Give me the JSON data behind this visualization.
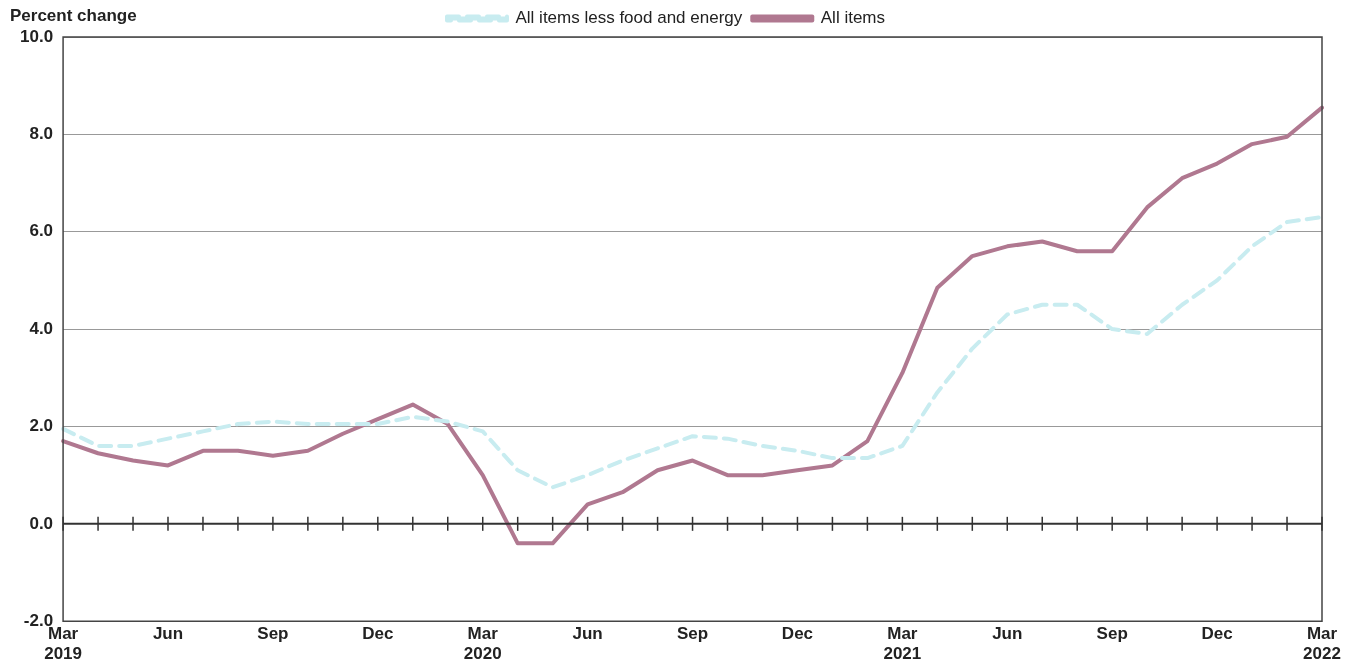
{
  "chart_data": {
    "type": "line",
    "ylabel": "Percent change",
    "categories": [
      "Mar 2019",
      null,
      null,
      "Jun",
      null,
      null,
      "Sep",
      null,
      null,
      "Dec",
      null,
      null,
      "Mar 2020",
      null,
      null,
      "Jun",
      null,
      null,
      "Sep",
      null,
      null,
      "Dec",
      null,
      null,
      "Mar 2021",
      null,
      null,
      "Jun",
      null,
      null,
      "Sep",
      null,
      null,
      "Dec",
      null,
      null,
      "Mar 2022"
    ],
    "series": [
      {
        "name": "All items",
        "color": "#b07890",
        "values": [
          1.7,
          1.45,
          1.3,
          1.2,
          1.5,
          1.5,
          1.4,
          1.5,
          1.85,
          2.15,
          2.45,
          2.05,
          1.0,
          -0.4,
          -0.4,
          0.4,
          0.65,
          1.1,
          1.3,
          1.0,
          1.0,
          1.1,
          1.2,
          1.7,
          3.1,
          4.85,
          5.5,
          5.7,
          5.8,
          5.6,
          5.6,
          6.5,
          7.1,
          7.4,
          7.8,
          7.95,
          8.55
        ]
      },
      {
        "name": "All items less food and energy",
        "color": "#c8ecf0",
        "line_style": "dashed",
        "values": [
          1.95,
          1.6,
          1.6,
          1.75,
          1.9,
          2.05,
          2.1,
          2.05,
          2.05,
          2.05,
          2.2,
          2.1,
          1.9,
          1.1,
          0.75,
          1.0,
          1.3,
          1.55,
          1.8,
          1.75,
          1.6,
          1.5,
          1.35,
          1.35,
          1.6,
          2.7,
          3.6,
          4.3,
          4.5,
          4.5,
          4.0,
          3.9,
          4.5,
          5.0,
          5.7,
          6.2,
          6.3
        ]
      }
    ],
    "ylim": [
      -2,
      10
    ],
    "yticks": [
      {
        "value": -2,
        "label": "-2.0"
      },
      {
        "value": 0,
        "label": "0.0"
      },
      {
        "value": 2,
        "label": "2.0"
      },
      {
        "value": 4,
        "label": "4.0"
      },
      {
        "value": 6,
        "label": "6.0"
      },
      {
        "value": 8,
        "label": "8.0"
      },
      {
        "value": 10,
        "label": "10.0"
      }
    ],
    "grid": "y",
    "legend": "top",
    "marker": "none"
  }
}
